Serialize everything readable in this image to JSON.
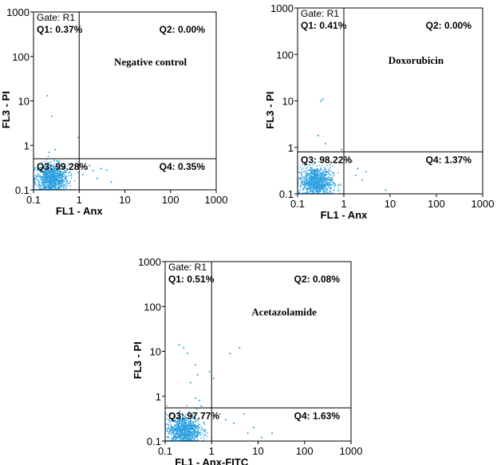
{
  "chart_data": [
    {
      "type": "scatter",
      "scale": "log",
      "annotation": "Negative control",
      "gate": "Gate: R1",
      "quadrants": {
        "q1": "Q1: 0.37%",
        "q2": "Q2: 0.00%",
        "q3": "Q3: 99.28%",
        "q4": "Q4: 0.35%"
      },
      "xlabel": "FL1  - Anx",
      "ylabel": "FL3  - PI",
      "xlim": [
        0.1,
        1000
      ],
      "ylim": [
        0.1,
        1000
      ],
      "xticks": [
        "0.1",
        "1",
        "10",
        "100",
        "1000"
      ],
      "yticks": [
        "0.1",
        "1",
        "10",
        "100",
        "1000"
      ],
      "gate_lines": {
        "x": 1.0,
        "y": 0.5
      },
      "dot_color": "#2a9fe0",
      "outliers": [
        [
          0.2,
          13
        ],
        [
          0.25,
          4.5
        ],
        [
          0.95,
          1.5
        ],
        [
          0.3,
          0.8
        ],
        [
          0.22,
          0.7
        ],
        [
          1.5,
          0.3
        ],
        [
          2.0,
          0.27
        ],
        [
          3.0,
          0.3
        ],
        [
          4.0,
          0.28
        ],
        [
          2.5,
          0.18
        ],
        [
          1.2,
          0.22
        ],
        [
          5.0,
          0.15
        ],
        [
          1.7,
          0.35
        ]
      ]
    },
    {
      "type": "scatter",
      "scale": "log",
      "annotation": "Doxorubicin",
      "gate": "Gate: R1",
      "quadrants": {
        "q1": "Q1: 0.41%",
        "q2": "Q2: 0.00%",
        "q3": "Q3: 98.22%",
        "q4": "Q4: 1.37%"
      },
      "xlabel": "FL1  - Anx",
      "ylabel": "FL3  - PI",
      "xlim": [
        0.1,
        1000
      ],
      "ylim": [
        0.1,
        1000
      ],
      "xticks": [
        "0.1",
        "1",
        "10",
        "100",
        "1000"
      ],
      "yticks": [
        "0.1",
        "1",
        "10",
        "100",
        "1000"
      ],
      "gate_lines": {
        "x": 1.0,
        "y": 0.8
      },
      "dot_color": "#2a9fe0",
      "outliers": [
        [
          0.32,
          10
        ],
        [
          0.35,
          11
        ],
        [
          0.28,
          1.8
        ],
        [
          0.4,
          1.2
        ],
        [
          0.9,
          0.9
        ],
        [
          1.5,
          0.5
        ],
        [
          2.0,
          0.35
        ],
        [
          3.0,
          0.3
        ],
        [
          1.3,
          0.6
        ],
        [
          2.5,
          0.2
        ],
        [
          8.0,
          0.12
        ],
        [
          1.8,
          0.25
        ]
      ]
    },
    {
      "type": "scatter",
      "scale": "log",
      "annotation": "Acetazolamide",
      "gate": "Gate: R1",
      "quadrants": {
        "q1": "Q1: 0.51%",
        "q2": "Q2: 0.08%",
        "q3": "Q3: 97.77%",
        "q4": "Q4: 1.63%"
      },
      "xlabel": "FL1  - Anx-FITC",
      "ylabel": "FL3  - PI",
      "xlim": [
        0.1,
        1000
      ],
      "ylim": [
        0.1,
        1000
      ],
      "xticks": [
        "0.1",
        "1",
        "10",
        "100",
        "1000"
      ],
      "yticks": [
        "0.1",
        "1",
        "10",
        "100",
        "1000"
      ],
      "gate_lines": {
        "x": 1.0,
        "y": 0.55
      },
      "dot_color": "#2a9fe0",
      "outliers": [
        [
          0.2,
          14
        ],
        [
          0.25,
          12
        ],
        [
          0.3,
          9
        ],
        [
          0.45,
          5
        ],
        [
          0.5,
          3
        ],
        [
          0.35,
          2
        ],
        [
          0.9,
          3.5
        ],
        [
          1.1,
          2.5
        ],
        [
          2.5,
          9
        ],
        [
          4.0,
          12
        ],
        [
          0.45,
          0.9
        ],
        [
          0.55,
          0.8
        ],
        [
          0.6,
          0.6
        ],
        [
          1.5,
          0.4
        ],
        [
          2.0,
          0.3
        ],
        [
          3.0,
          0.25
        ],
        [
          5.0,
          0.4
        ],
        [
          8.0,
          0.2
        ],
        [
          12.0,
          0.12
        ],
        [
          20.0,
          0.15
        ],
        [
          6.0,
          0.15
        ]
      ]
    }
  ]
}
